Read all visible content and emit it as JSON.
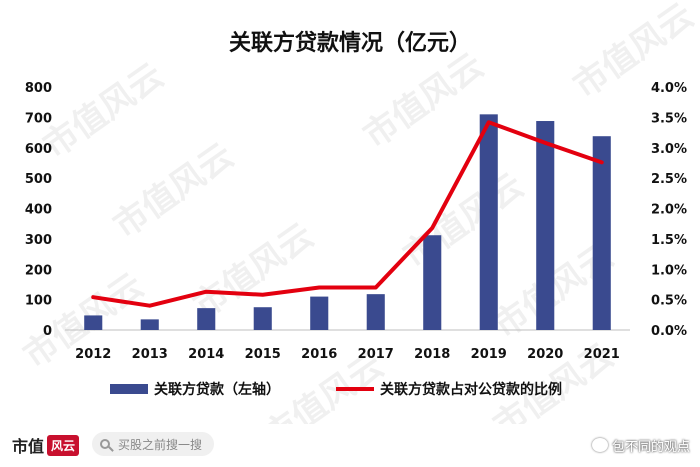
{
  "title": "关联方贷款情况（亿元）",
  "watermark": "市值风云",
  "footer": {
    "brand_text": "市值",
    "brand_mark": "风云",
    "search_placeholder": "买股之前搜一搜",
    "credit": "包不同的观点"
  },
  "chart_data": {
    "type": "bar",
    "title": "关联方贷款情况（亿元）",
    "categories": [
      "2012",
      "2013",
      "2014",
      "2015",
      "2016",
      "2017",
      "2018",
      "2019",
      "2020",
      "2021"
    ],
    "series": [
      {
        "name": "关联方贷款（左轴）",
        "type": "bar",
        "axis": "left",
        "color": "#3a4a8f",
        "values": [
          48,
          35,
          72,
          75,
          110,
          118,
          312,
          710,
          688,
          638
        ]
      },
      {
        "name": "关联方贷款占对公贷款的比例",
        "type": "line",
        "axis": "right",
        "color": "#e3000f",
        "values": [
          0.54,
          0.4,
          0.63,
          0.58,
          0.7,
          0.7,
          1.68,
          3.42,
          3.08,
          2.76
        ]
      }
    ],
    "y_left": {
      "ylim": [
        0,
        800
      ],
      "ticks": [
        0,
        100,
        200,
        300,
        400,
        500,
        600,
        700,
        800
      ],
      "tick_labels": [
        "0",
        "100",
        "200",
        "300",
        "400",
        "500",
        "600",
        "700",
        "800"
      ]
    },
    "y_right": {
      "ylim": [
        0,
        4.0
      ],
      "ticks": [
        0,
        0.5,
        1.0,
        1.5,
        2.0,
        2.5,
        3.0,
        3.5,
        4.0
      ],
      "tick_labels": [
        "0.0%",
        "0.5%",
        "1.0%",
        "1.5%",
        "2.0%",
        "2.5%",
        "3.0%",
        "3.5%",
        "4.0%"
      ]
    },
    "grid": false,
    "legend_position": "bottom"
  }
}
